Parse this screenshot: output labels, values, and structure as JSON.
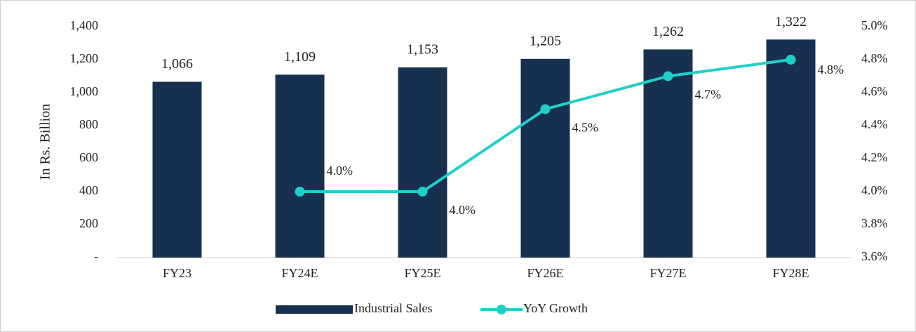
{
  "chart_data": {
    "type": "bar-line",
    "y_label": "In Rs. Billion",
    "categories": [
      "FY23",
      "FY24E",
      "FY25E",
      "FY26E",
      "FY27E",
      "FY28E"
    ],
    "series": [
      {
        "name": "Industrial Sales",
        "type": "bar",
        "color": "#17304f",
        "values": [
          1066,
          1109,
          1153,
          1205,
          1262,
          1322
        ],
        "value_labels": [
          "1,066",
          "1,109",
          "1,153",
          "1,205",
          "1,262",
          "1,322"
        ]
      },
      {
        "name": "YoY Growth",
        "type": "line",
        "axis": "y2",
        "color": "#1fd0c8",
        "values": [
          null,
          4.0,
          4.0,
          4.5,
          4.7,
          4.8
        ],
        "value_labels": [
          null,
          "4.0%",
          "4.0%",
          "4.5%",
          "4.7%",
          "4.8%"
        ]
      }
    ],
    "ylim": [
      0,
      1400
    ],
    "yticks": [
      {
        "value": 0,
        "label": "-"
      },
      200,
      400,
      600,
      800,
      {
        "value": 1000,
        "label": "1,000"
      },
      {
        "value": 1200,
        "label": "1,200"
      },
      {
        "value": 1400,
        "label": "1,400"
      }
    ],
    "y2lim": [
      3.6,
      5.0
    ],
    "y2ticks": [
      {
        "value": 3.6,
        "label": "3.6%"
      },
      {
        "value": 3.8,
        "label": "3.8%"
      },
      {
        "value": 4.0,
        "label": "4.0%"
      },
      {
        "value": 4.2,
        "label": "4.2%"
      },
      {
        "value": 4.4,
        "label": "4.4%"
      },
      {
        "value": 4.6,
        "label": "4.6%"
      },
      {
        "value": 4.8,
        "label": "4.8%"
      },
      {
        "value": 5.0,
        "label": "5.0%"
      }
    ],
    "legend": "bottom"
  }
}
